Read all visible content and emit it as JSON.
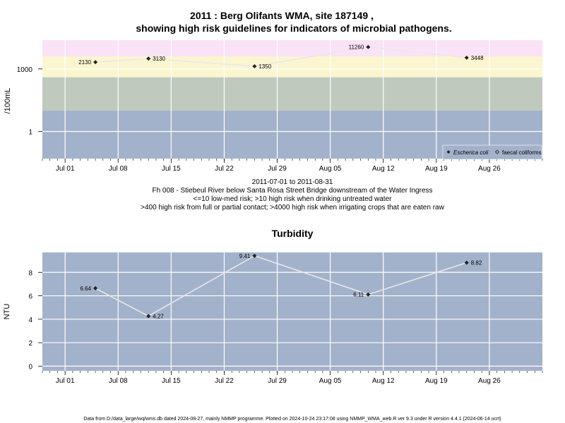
{
  "title_line1": "2011 : Berg Olifants WMA, site 187149 ,",
  "title_line2": "showing high risk guidelines for indicators of microbial pathogens.",
  "subtitle": {
    "date_range": "2011-07-01 to 2011-08-31",
    "site": "Fh 008 - Stiebeul River below Santa Rosa Street Bridge downstream of the Water Ingress",
    "line3": "<=10 low-med risk; >10 high risk when drinking untreated water",
    "line4": ">400 high risk from full or partial contact; >4000 high risk when irrigating crops that are eaten raw"
  },
  "footer": "Data from D:/data_large/wq/wms.db dated 2024-08-27, mainly NMMP programme. Plotted on 2024-10-24 23:17:08 using NMMP_WMA_web.R ver 9.3 under R version 4.4.1 (2024-06-14 ucrt)",
  "colors": {
    "band_low": "#a3b2cb",
    "band_med": "#c0c9be",
    "band_high": "#fcf6d0",
    "band_vhigh": "#fae2f7",
    "grid": "#ffffff",
    "line": "#e8e8e8",
    "point": "#222222"
  },
  "chart_data": [
    {
      "type": "line",
      "title": "",
      "ylabel": "/100mL",
      "yscale": "log10",
      "ylim": [
        0.05,
        24000
      ],
      "y_ticks": [
        1,
        1000
      ],
      "y_tick_labels": [
        "1",
        "1000"
      ],
      "x_range": [
        "2011-06-28",
        "2011-09-02"
      ],
      "x_ticks": [
        "2011-07-01",
        "2011-07-08",
        "2011-07-15",
        "2011-07-22",
        "2011-07-29",
        "2011-08-05",
        "2011-08-12",
        "2011-08-19",
        "2011-08-26"
      ],
      "x_tick_labels": [
        "Jul 01",
        "Jul 08",
        "Jul 15",
        "Jul 22",
        "Jul 29",
        "Aug 05",
        "Aug 12",
        "Aug 19",
        "Aug 26"
      ],
      "bands": [
        {
          "from": 0.05,
          "to": 10,
          "color": "#a3b2cb"
        },
        {
          "from": 10,
          "to": 400,
          "color": "#c0c9be"
        },
        {
          "from": 400,
          "to": 4000,
          "color": "#fcf6d0"
        },
        {
          "from": 4000,
          "to": 24000,
          "color": "#fae2f7"
        }
      ],
      "series": [
        {
          "name": "Escherica coli",
          "x": [
            "2011-07-05",
            "2011-07-12",
            "2011-07-26",
            "2011-08-10",
            "2011-08-23"
          ],
          "values": [
            2130,
            3130,
            1350,
            11260,
            3448
          ],
          "labels": [
            "2130",
            "3130",
            "1350",
            "11260",
            "3448"
          ],
          "label_side": [
            "left",
            "right",
            "right",
            "left",
            "right"
          ]
        }
      ],
      "legend": {
        "position": "bottom-right",
        "entries": [
          {
            "label": "Escherica coli",
            "italic": true,
            "symbol": "filled-diamond"
          },
          {
            "label": "faecal coliforms",
            "italic": false,
            "symbol": "open-diamond"
          }
        ]
      }
    },
    {
      "type": "line",
      "title": "Turbidity",
      "ylabel": "NTU",
      "yscale": "linear",
      "ylim": [
        -0.4,
        9.7
      ],
      "y_ticks": [
        0,
        2,
        4,
        6,
        8
      ],
      "y_tick_labels": [
        "0",
        "2",
        "4",
        "6",
        "8"
      ],
      "x_range": [
        "2011-06-28",
        "2011-09-02"
      ],
      "x_ticks": [
        "2011-07-01",
        "2011-07-08",
        "2011-07-15",
        "2011-07-22",
        "2011-07-29",
        "2011-08-05",
        "2011-08-12",
        "2011-08-19",
        "2011-08-26"
      ],
      "x_tick_labels": [
        "Jul 01",
        "Jul 08",
        "Jul 15",
        "Jul 22",
        "Jul 29",
        "Aug 05",
        "Aug 12",
        "Aug 19",
        "Aug 26"
      ],
      "background": "#a3b2cb",
      "series": [
        {
          "x": [
            "2011-07-05",
            "2011-07-12",
            "2011-07-26",
            "2011-08-10",
            "2011-08-23"
          ],
          "values": [
            6.64,
            4.27,
            9.41,
            6.11,
            8.82
          ],
          "labels": [
            "6.64",
            "4.27",
            "9.41",
            "6.11",
            "8.82"
          ],
          "label_side": [
            "left",
            "right",
            "left",
            "left",
            "right"
          ]
        }
      ]
    }
  ]
}
